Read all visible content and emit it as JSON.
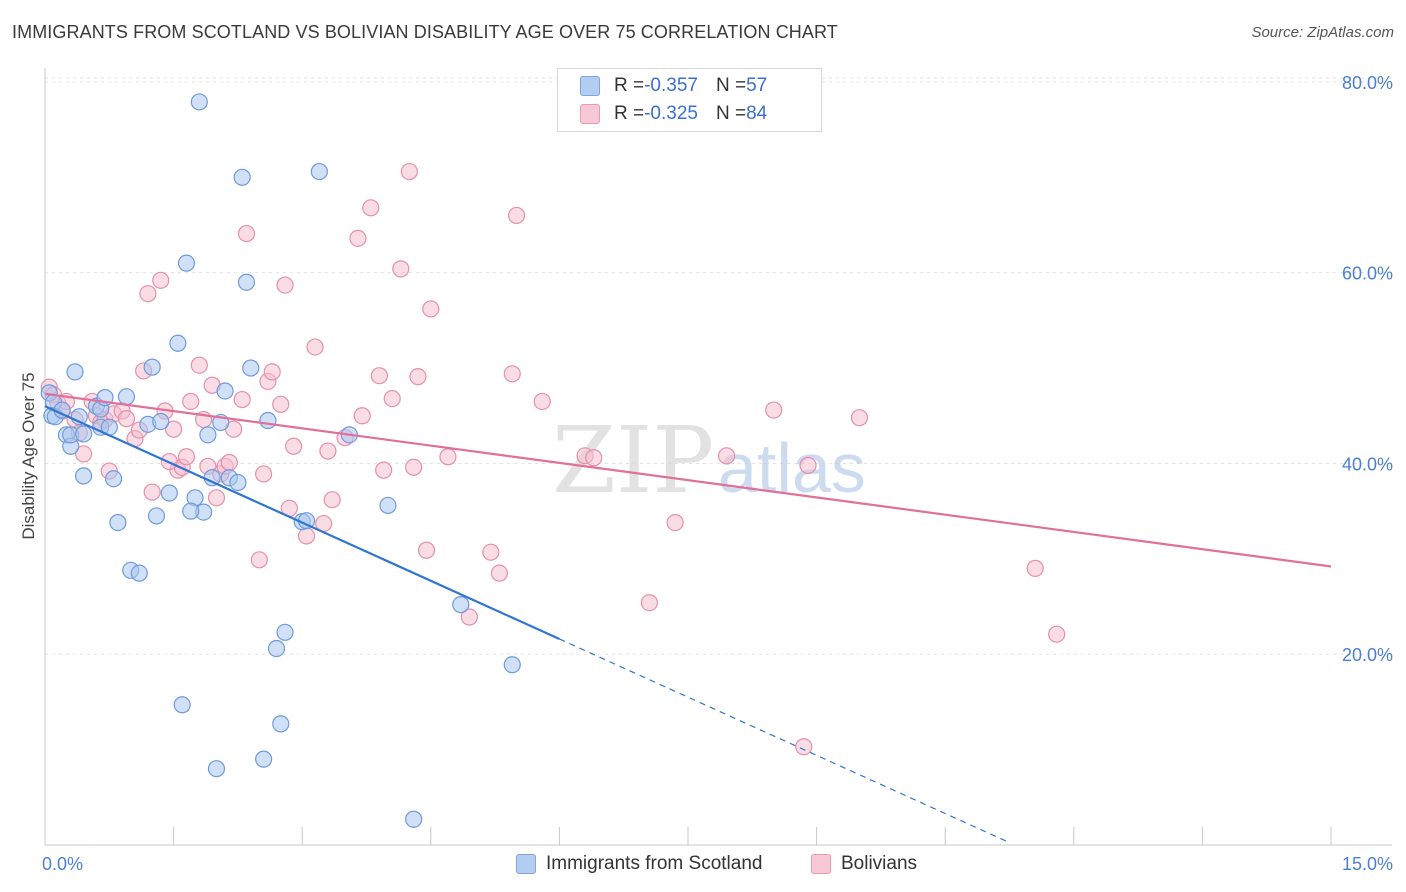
{
  "title": "IMMIGRANTS FROM SCOTLAND VS BOLIVIAN DISABILITY AGE OVER 75 CORRELATION CHART",
  "source_label": "Source: ZipAtlas.com",
  "watermark": {
    "zip": "ZIP",
    "atlas": "atlas"
  },
  "colors": {
    "blue_fill": "#a9c7ef",
    "blue_stroke": "#6f9bdc",
    "blue_line": "#2f76d2",
    "pink_fill": "#f5bfd0",
    "pink_stroke": "#e391ad",
    "pink_line": "#e0709a",
    "grid": "#e2e2e2",
    "tick_text": "#4a7fd4"
  },
  "legend": {
    "rows": [
      {
        "r_label": "R = ",
        "r_value": "-0.357",
        "n_label": "N = ",
        "n_value": "57"
      },
      {
        "r_label": "R = ",
        "r_value": "-0.325",
        "n_label": "N = ",
        "n_value": "84"
      }
    ]
  },
  "bottom_legend": [
    "Immigrants from Scotland",
    "Bolivians"
  ],
  "chart_data": {
    "type": "scatter",
    "title": "IMMIGRANTS FROM SCOTLAND VS BOLIVIAN DISABILITY AGE OVER 75 CORRELATION CHART",
    "xlabel": "",
    "ylabel": "Disability Age Over 75",
    "xlim": [
      0,
      15
    ],
    "ylim": [
      0,
      80
    ],
    "x_tick_labels": [
      "0.0%",
      "15.0%"
    ],
    "y_ticks": [
      20,
      40,
      60,
      80
    ],
    "y_tick_labels": [
      "20.0%",
      "40.0%",
      "60.0%",
      "80.0%"
    ],
    "grid": true,
    "legend_position": "top-center",
    "series": [
      {
        "name": "Immigrants from Scotland",
        "R": -0.357,
        "N": 57,
        "trend": {
          "x0": 0.0,
          "y0": 46.0,
          "x1": 6.0,
          "y1": 21.6,
          "dash_to_x": 11.25
        },
        "points": [
          [
            0.05,
            47.4
          ],
          [
            0.1,
            46.4
          ],
          [
            0.08,
            45.0
          ],
          [
            0.12,
            44.9
          ],
          [
            0.2,
            45.6
          ],
          [
            0.25,
            43.0
          ],
          [
            0.3,
            41.8
          ],
          [
            0.3,
            43.0
          ],
          [
            0.35,
            49.6
          ],
          [
            0.4,
            44.9
          ],
          [
            0.45,
            43.1
          ],
          [
            0.45,
            38.7
          ],
          [
            0.6,
            46.0
          ],
          [
            0.65,
            45.7
          ],
          [
            0.7,
            46.9
          ],
          [
            0.65,
            43.8
          ],
          [
            0.75,
            43.8
          ],
          [
            0.8,
            38.4
          ],
          [
            0.95,
            47.0
          ],
          [
            0.85,
            33.8
          ],
          [
            1.0,
            28.8
          ],
          [
            1.1,
            28.5
          ],
          [
            1.2,
            44.1
          ],
          [
            1.25,
            50.1
          ],
          [
            1.3,
            34.5
          ],
          [
            1.35,
            44.4
          ],
          [
            1.45,
            36.9
          ],
          [
            1.55,
            52.6
          ],
          [
            1.6,
            14.7
          ],
          [
            1.65,
            61.0
          ],
          [
            1.75,
            36.4
          ],
          [
            1.8,
            77.9
          ],
          [
            1.85,
            34.9
          ],
          [
            1.9,
            43.0
          ],
          [
            1.95,
            38.5
          ],
          [
            2.0,
            8.0
          ],
          [
            2.05,
            44.3
          ],
          [
            2.1,
            47.6
          ],
          [
            2.15,
            38.5
          ],
          [
            2.3,
            70.0
          ],
          [
            2.35,
            59.0
          ],
          [
            2.4,
            50.0
          ],
          [
            2.55,
            9.0
          ],
          [
            2.6,
            44.5
          ],
          [
            2.7,
            20.6
          ],
          [
            2.75,
            12.7
          ],
          [
            2.8,
            22.3
          ],
          [
            3.0,
            33.9
          ],
          [
            3.05,
            34.0
          ],
          [
            3.2,
            70.6
          ],
          [
            3.55,
            43.0
          ],
          [
            4.0,
            35.6
          ],
          [
            4.3,
            2.7
          ],
          [
            4.85,
            25.2
          ],
          [
            5.45,
            18.9
          ],
          [
            1.7,
            35.0
          ],
          [
            2.25,
            38.0
          ]
        ]
      },
      {
        "name": "Bolivians",
        "R": -0.325,
        "N": 84,
        "trend": {
          "x0": 0.0,
          "y0": 47.3,
          "x1": 15.0,
          "y1": 29.2
        },
        "points": [
          [
            0.05,
            48.0
          ],
          [
            0.1,
            47.2
          ],
          [
            0.15,
            46.3
          ],
          [
            0.2,
            45.5
          ],
          [
            0.25,
            46.5
          ],
          [
            0.35,
            44.6
          ],
          [
            0.4,
            43.2
          ],
          [
            0.45,
            41.0
          ],
          [
            0.55,
            46.5
          ],
          [
            0.6,
            45.0
          ],
          [
            0.65,
            44.3
          ],
          [
            0.7,
            44.6
          ],
          [
            0.75,
            39.2
          ],
          [
            0.8,
            45.2
          ],
          [
            0.9,
            45.5
          ],
          [
            0.95,
            44.7
          ],
          [
            1.05,
            42.6
          ],
          [
            1.1,
            43.5
          ],
          [
            1.15,
            49.7
          ],
          [
            1.2,
            57.8
          ],
          [
            1.25,
            37.0
          ],
          [
            1.35,
            59.2
          ],
          [
            1.4,
            45.5
          ],
          [
            1.5,
            43.6
          ],
          [
            1.55,
            39.3
          ],
          [
            1.6,
            39.6
          ],
          [
            1.65,
            40.7
          ],
          [
            1.7,
            46.5
          ],
          [
            1.8,
            50.3
          ],
          [
            1.85,
            44.6
          ],
          [
            1.9,
            39.7
          ],
          [
            1.95,
            48.2
          ],
          [
            2.0,
            36.4
          ],
          [
            2.05,
            38.9
          ],
          [
            2.1,
            39.7
          ],
          [
            2.15,
            40.1
          ],
          [
            2.2,
            43.6
          ],
          [
            2.3,
            46.7
          ],
          [
            2.35,
            64.1
          ],
          [
            2.5,
            29.9
          ],
          [
            2.55,
            38.9
          ],
          [
            2.6,
            48.6
          ],
          [
            2.65,
            49.6
          ],
          [
            2.75,
            46.2
          ],
          [
            2.8,
            58.7
          ],
          [
            2.85,
            35.3
          ],
          [
            2.9,
            41.8
          ],
          [
            3.05,
            32.4
          ],
          [
            3.15,
            52.2
          ],
          [
            3.25,
            33.7
          ],
          [
            3.3,
            41.3
          ],
          [
            3.35,
            36.2
          ],
          [
            3.5,
            42.7
          ],
          [
            3.65,
            63.6
          ],
          [
            3.7,
            45.0
          ],
          [
            3.8,
            66.8
          ],
          [
            3.9,
            49.2
          ],
          [
            3.95,
            39.3
          ],
          [
            4.05,
            46.8
          ],
          [
            4.15,
            60.4
          ],
          [
            4.25,
            70.6
          ],
          [
            4.3,
            39.6
          ],
          [
            4.35,
            49.1
          ],
          [
            4.45,
            30.9
          ],
          [
            4.5,
            56.2
          ],
          [
            4.7,
            40.7
          ],
          [
            4.95,
            23.9
          ],
          [
            5.2,
            30.7
          ],
          [
            5.3,
            28.5
          ],
          [
            5.45,
            49.4
          ],
          [
            5.5,
            66.0
          ],
          [
            5.8,
            46.5
          ],
          [
            6.3,
            40.8
          ],
          [
            6.4,
            40.6
          ],
          [
            7.05,
            25.4
          ],
          [
            7.35,
            33.8
          ],
          [
            7.95,
            40.8
          ],
          [
            8.5,
            45.6
          ],
          [
            8.85,
            10.3
          ],
          [
            8.9,
            39.8
          ],
          [
            9.5,
            44.8
          ],
          [
            11.55,
            29.0
          ],
          [
            11.8,
            22.1
          ],
          [
            1.45,
            40.2
          ]
        ]
      }
    ]
  }
}
